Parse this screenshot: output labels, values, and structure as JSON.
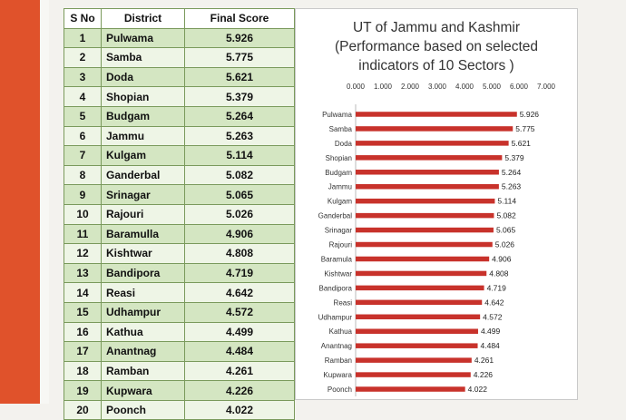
{
  "table": {
    "headers": [
      "S No",
      "District",
      "Final Score"
    ],
    "rows": [
      [
        "1",
        "Pulwama",
        "5.926"
      ],
      [
        "2",
        "Samba",
        "5.775"
      ],
      [
        "3",
        "Doda",
        "5.621"
      ],
      [
        "4",
        "Shopian",
        "5.379"
      ],
      [
        "5",
        "Budgam",
        "5.264"
      ],
      [
        "6",
        "Jammu",
        "5.263"
      ],
      [
        "7",
        "Kulgam",
        "5.114"
      ],
      [
        "8",
        "Ganderbal",
        "5.082"
      ],
      [
        "9",
        "Srinagar",
        "5.065"
      ],
      [
        "10",
        "Rajouri",
        "5.026"
      ],
      [
        "11",
        "Baramulla",
        "4.906"
      ],
      [
        "12",
        "Kishtwar",
        "4.808"
      ],
      [
        "13",
        "Bandipora",
        "4.719"
      ],
      [
        "14",
        "Reasi",
        "4.642"
      ],
      [
        "15",
        "Udhampur",
        "4.572"
      ],
      [
        "16",
        "Kathua",
        "4.499"
      ],
      [
        "17",
        "Anantnag",
        "4.484"
      ],
      [
        "18",
        "Ramban",
        "4.261"
      ],
      [
        "19",
        "Kupwara",
        "4.226"
      ],
      [
        "20",
        "Poonch",
        "4.022"
      ]
    ]
  },
  "chart_data": {
    "type": "bar",
    "orientation": "horizontal",
    "title_lines": [
      "UT of Jammu and Kashmir",
      "(Performance based on selected",
      "indicators of 10 Sectors )"
    ],
    "categories": [
      "Pulwama",
      "Samba",
      "Doda",
      "Shopian",
      "Budgam",
      "Jammu",
      "Kulgam",
      "Ganderbal",
      "Srinagar",
      "Rajouri",
      "Baramula",
      "Kishtwar",
      "Bandipora",
      "Reasi",
      "Udhampur",
      "Kathua",
      "Anantnag",
      "Ramban",
      "Kupwara",
      "Poonch"
    ],
    "values": [
      5.926,
      5.775,
      5.621,
      5.379,
      5.264,
      5.263,
      5.114,
      5.082,
      5.065,
      5.026,
      4.906,
      4.808,
      4.719,
      4.642,
      4.572,
      4.499,
      4.484,
      4.261,
      4.226,
      4.022
    ],
    "data_labels": [
      "5.926",
      "5.775",
      "5.621",
      "5.379",
      "5.264",
      "5.263",
      "5.114",
      "5.082",
      "5.065",
      "5.026",
      "4.906",
      "4.808",
      "4.719",
      "4.642",
      "4.572",
      "4.499",
      "4.484",
      "4.261",
      "4.226",
      "4.022"
    ],
    "x_ticks": [
      "0.000",
      "1.000",
      "2.000",
      "3.000",
      "4.000",
      "5.000",
      "6.000",
      "7.000"
    ],
    "xlim": [
      0,
      7
    ],
    "axis_position": "top",
    "grid": false,
    "legend": "none",
    "bar_color": "#c8322b"
  }
}
